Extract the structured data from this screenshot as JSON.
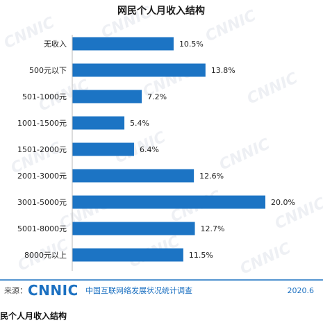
{
  "chart_data": {
    "type": "bar",
    "orientation": "horizontal",
    "title": "网民个人月收入结构",
    "categories": [
      "无收入",
      "500元以下",
      "501-1000元",
      "1001-1500元",
      "1501-2000元",
      "2001-3000元",
      "3001-5000元",
      "5001-8000元",
      "8000元以上"
    ],
    "values": [
      10.5,
      13.8,
      7.2,
      5.4,
      6.4,
      12.6,
      20.0,
      12.7,
      11.5
    ],
    "value_labels": [
      "10.5%",
      "13.8%",
      "7.2%",
      "5.4%",
      "6.4%",
      "12.6%",
      "20.0%",
      "12.7%",
      "11.5%"
    ],
    "unit": "%",
    "xlim": [
      0,
      20
    ],
    "grid": false,
    "bar_color": "#1c74c4",
    "xlabel": "",
    "ylabel": ""
  },
  "footer": {
    "source_label": "来源：",
    "logo_text": "CNNIC",
    "org_name": "中国互联网络发展状况统计调查",
    "date": "2020.6",
    "accent_color": "#1b70c1"
  },
  "caption": "民个人月收入结构",
  "watermark": "CNNIC"
}
